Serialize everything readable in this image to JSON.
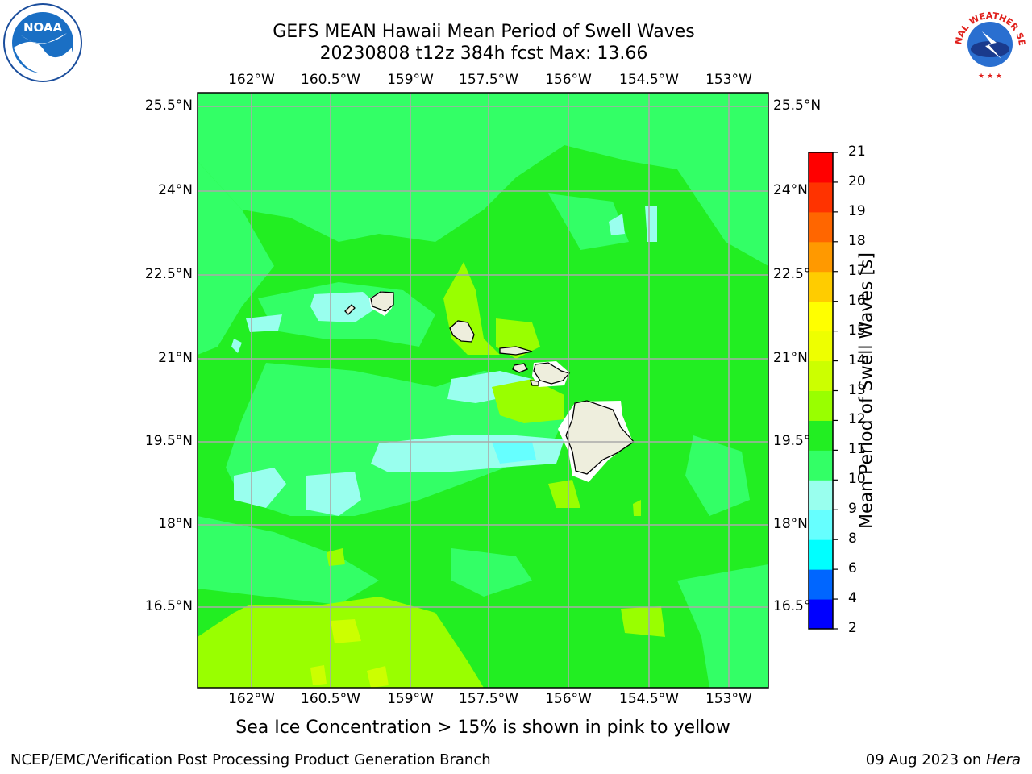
{
  "title_line1": "GEFS MEAN Hawaii Mean Period of Swell Waves",
  "title_line2": "20230808 t12z 384h fcst   Max: 13.66",
  "lon_labels": [
    "162°W",
    "160.5°W",
    "159°W",
    "157.5°W",
    "156°W",
    "154.5°W",
    "153°W"
  ],
  "lat_labels": [
    "25.5°N",
    "24°N",
    "22.5°N",
    "21°N",
    "19.5°N",
    "18°N",
    "16.5°N"
  ],
  "colorbar": {
    "label": "Mean Period of Swell Waves [s]",
    "ticks": [
      "2",
      "4",
      "6",
      "8",
      "9",
      "10",
      "11",
      "12",
      "13",
      "14",
      "15",
      "16",
      "17",
      "18",
      "19",
      "20",
      "21"
    ],
    "colors": [
      "#0000ff",
      "#0066ff",
      "#00ffff",
      "#66ffff",
      "#99ffee",
      "#33ff66",
      "#22ee22",
      "#99ff00",
      "#ccff00",
      "#eeff00",
      "#ffff00",
      "#ffcc00",
      "#ff9900",
      "#ff6600",
      "#ff3300",
      "#ff0000"
    ]
  },
  "ice_note": "Sea Ice Concentration > 15% is shown in pink to yellow",
  "footer_left": "NCEP/EMC/Verification Post Processing Product Generation Branch",
  "footer_date": "09 Aug 2023 on ",
  "footer_host": "Hera",
  "logos": {
    "left": "NOAA",
    "right": "NATIONAL WEATHER SERVICE"
  },
  "map_colors": {
    "base": "#22ee22",
    "light": "#33ff66",
    "pale": "#99ffee",
    "cyan": "#66ffff",
    "lime": "#99ff00",
    "yellow": "#ccff00",
    "land": "#eeeedd",
    "grid": "#aaaaaa"
  }
}
